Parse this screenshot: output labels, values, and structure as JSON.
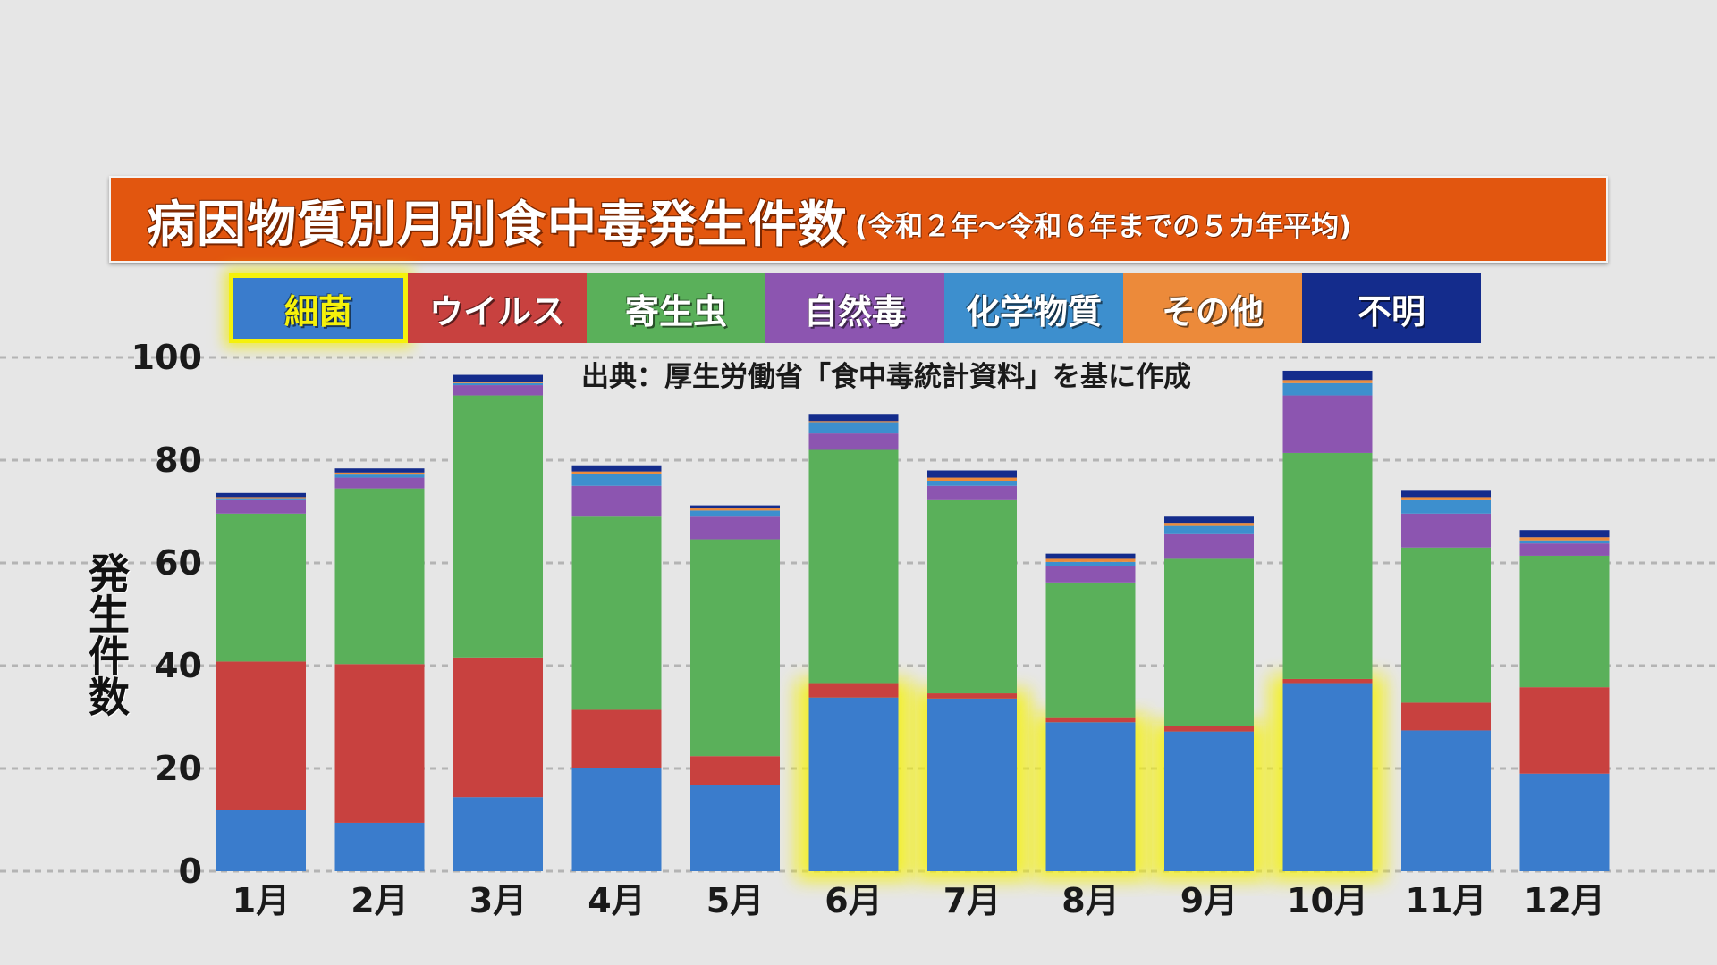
{
  "title": {
    "main": "病因物質別月別食中毒発生件数",
    "sub": "(令和２年～令和６年までの５カ年平均)"
  },
  "source": "出典：厚生労働省「食中毒統計資料」を基に作成",
  "y_axis_label": "発生件数",
  "highlight": {
    "legend_index": 0,
    "months": [
      "6月",
      "7月",
      "8月",
      "9月",
      "10月"
    ],
    "glow_color": "#f5f10a"
  },
  "chart_data": {
    "type": "bar",
    "stacked": true,
    "title": "病因物質別月別食中毒発生件数",
    "subtitle": "(令和２年～令和６年までの５カ年平均)",
    "ylabel": "発生件数",
    "ylim": [
      0,
      105
    ],
    "yticks": [
      0,
      20,
      40,
      60,
      80,
      100
    ],
    "grid": true,
    "legend_position": "top",
    "categories": [
      "1月",
      "2月",
      "3月",
      "4月",
      "5月",
      "6月",
      "7月",
      "8月",
      "9月",
      "10月",
      "11月",
      "12月"
    ],
    "series": [
      {
        "name": "細菌",
        "color": "#3a7ccc",
        "values": [
          12.0,
          9.4,
          14.4,
          20.0,
          16.8,
          33.8,
          33.6,
          29.0,
          27.2,
          36.6,
          27.4,
          19.0
        ]
      },
      {
        "name": "ウイルス",
        "color": "#c8413f",
        "values": [
          28.8,
          30.9,
          27.2,
          11.4,
          5.6,
          2.8,
          1.0,
          0.8,
          1.0,
          0.8,
          5.4,
          16.8
        ]
      },
      {
        "name": "寄生虫",
        "color": "#5ab05a",
        "values": [
          28.8,
          34.2,
          51.0,
          37.6,
          42.2,
          45.4,
          37.6,
          26.4,
          32.6,
          44.0,
          30.2,
          25.6
        ]
      },
      {
        "name": "自然毒",
        "color": "#8c55b0",
        "values": [
          2.6,
          2.1,
          2.0,
          6.0,
          4.4,
          3.2,
          2.8,
          3.2,
          4.8,
          11.2,
          6.6,
          2.4
        ]
      },
      {
        "name": "化学物質",
        "color": "#3d8fce",
        "values": [
          0.4,
          0.6,
          0.4,
          2.4,
          1.2,
          2.2,
          1.0,
          0.8,
          1.6,
          2.4,
          2.6,
          0.6
        ]
      },
      {
        "name": "その他",
        "color": "#ec8a3a",
        "values": [
          0.2,
          0.4,
          0.2,
          0.4,
          0.4,
          0.2,
          0.6,
          0.6,
          0.6,
          0.6,
          0.6,
          0.6
        ]
      },
      {
        "name": "不明",
        "color": "#142c8c",
        "values": [
          0.8,
          0.8,
          1.4,
          1.2,
          0.6,
          1.4,
          1.4,
          1.0,
          1.2,
          1.8,
          1.4,
          1.4
        ]
      }
    ]
  }
}
